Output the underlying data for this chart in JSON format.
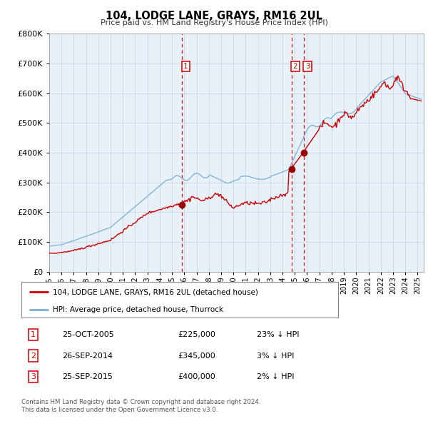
{
  "title": "104, LODGE LANE, GRAYS, RM16 2UL",
  "subtitle": "Price paid vs. HM Land Registry's House Price Index (HPI)",
  "legend_line1": "104, LODGE LANE, GRAYS, RM16 2UL (detached house)",
  "legend_line2": "HPI: Average price, detached house, Thurrock",
  "transactions": [
    {
      "num": 1,
      "date": "25-OCT-2005",
      "price": 225000,
      "pct": "23%",
      "x_year": 2005.81
    },
    {
      "num": 2,
      "date": "26-SEP-2014",
      "price": 345000,
      "pct": "3%",
      "x_year": 2014.74
    },
    {
      "num": 3,
      "date": "25-SEP-2015",
      "price": 400000,
      "pct": "2%",
      "x_year": 2015.73
    }
  ],
  "footnote1": "Contains HM Land Registry data © Crown copyright and database right 2024.",
  "footnote2": "This data is licensed under the Open Government Licence v3.0.",
  "hpi_color": "#7bafd4",
  "price_color": "#cc0000",
  "marker_color": "#990000",
  "vline_color": "#cc0000",
  "grid_color": "#c8d8e8",
  "plot_bg_color": "#e8f0f8",
  "ylim": [
    0,
    800000
  ],
  "xlim_start": 1995.0,
  "xlim_end": 2025.5
}
